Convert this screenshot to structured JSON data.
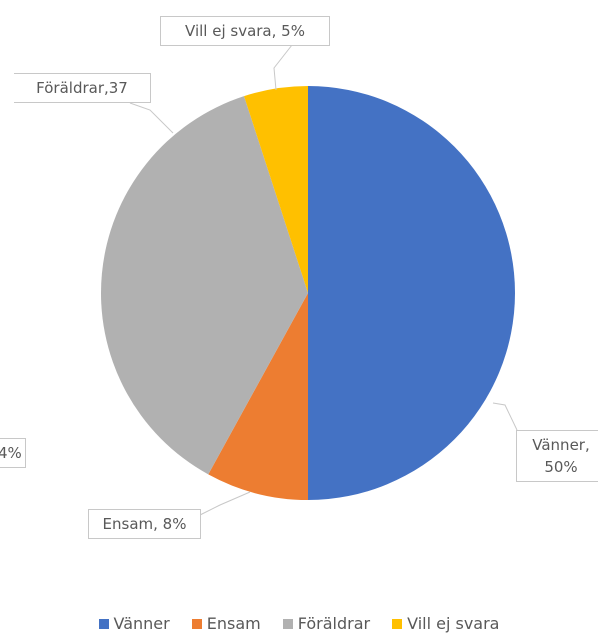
{
  "chart_data": {
    "type": "pie",
    "categories": [
      "Vänner",
      "Ensam",
      "Föräldrar",
      "Vill ej svara"
    ],
    "values": [
      50,
      8,
      37,
      5
    ],
    "value_labels": [
      "Vänner, 50%",
      "Ensam, 8%",
      "Föräldrar,37",
      "Vill ej svara, 5%"
    ],
    "colors": [
      "#4472c4",
      "#ed7d31",
      "#b1b1b1",
      "#ffc000"
    ],
    "annotations": [
      "4%"
    ],
    "legend": "bottom"
  }
}
